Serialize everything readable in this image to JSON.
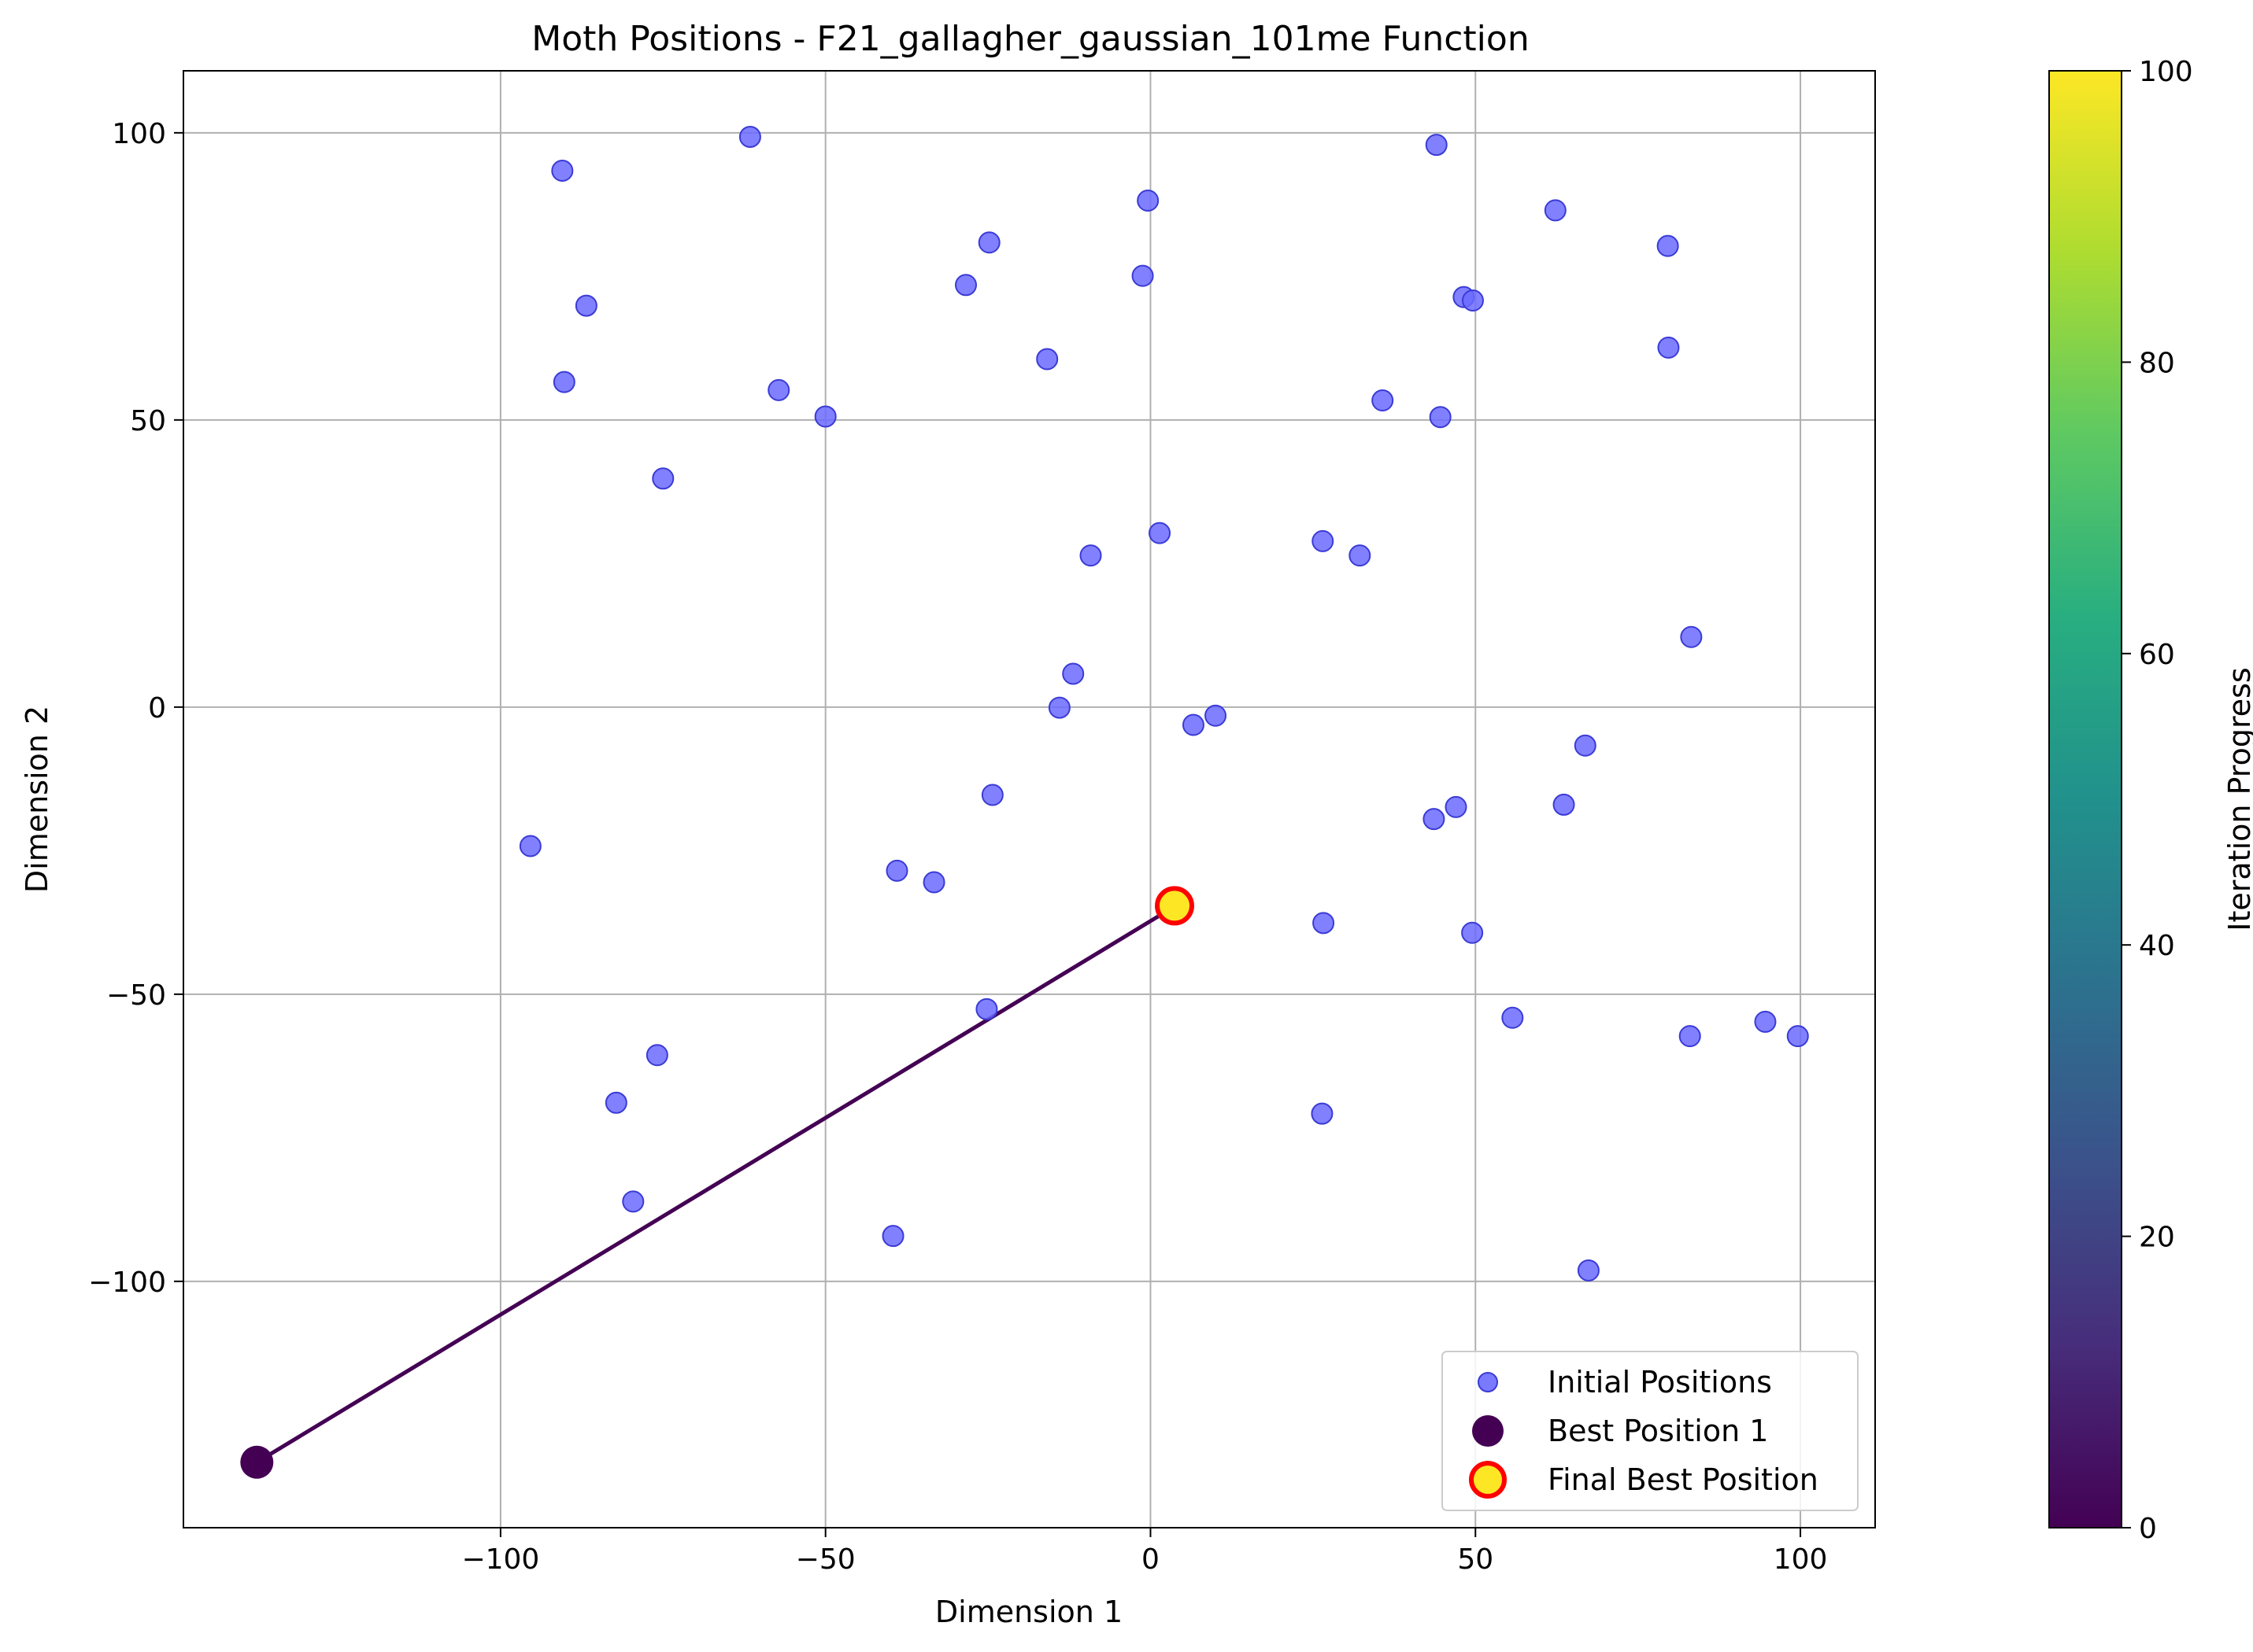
{
  "chart_data": {
    "type": "scatter",
    "title": "Moth Positions - F21_gallagher_gaussian_101me Function",
    "xlabel": "Dimension 1",
    "ylabel": "Dimension 2",
    "xlim": [
      -148.8,
      111.5
    ],
    "ylim": [
      -142.9,
      110.8
    ],
    "xticks": [
      -100,
      -50,
      0,
      50,
      100
    ],
    "yticks": [
      -100,
      -50,
      0,
      50,
      100
    ],
    "grid": true,
    "legend_position": "lower-right",
    "colors": {
      "initial": "#6b6bff",
      "initial_edge": "#3b3bd6",
      "best_start": "#440154",
      "final_fill": "#fde725",
      "final_edge": "#ff0000",
      "arrow": "#440154"
    },
    "series": [
      {
        "name": "Initial Positions",
        "points": [
          [
            -90.5,
            93.4
          ],
          [
            -61.6,
            99.3
          ],
          [
            -86.8,
            69.9
          ],
          [
            -90.2,
            56.6
          ],
          [
            -57.2,
            55.2
          ],
          [
            -50.0,
            50.6
          ],
          [
            -75.0,
            39.8
          ],
          [
            -28.4,
            73.5
          ],
          [
            -24.8,
            80.9
          ],
          [
            -15.9,
            60.6
          ],
          [
            -0.4,
            88.2
          ],
          [
            -1.2,
            75.1
          ],
          [
            1.4,
            30.3
          ],
          [
            -9.2,
            26.4
          ],
          [
            -11.9,
            5.8
          ],
          [
            -14.0,
            -0.1
          ],
          [
            6.6,
            -3.1
          ],
          [
            10.0,
            -1.5
          ],
          [
            -24.3,
            -15.3
          ],
          [
            -95.4,
            -24.2
          ],
          [
            -39.0,
            -28.5
          ],
          [
            -33.3,
            -30.5
          ],
          [
            -25.2,
            -52.6
          ],
          [
            -75.9,
            -60.6
          ],
          [
            -82.2,
            -68.9
          ],
          [
            -79.6,
            -86.1
          ],
          [
            -39.6,
            -92.1
          ],
          [
            44.0,
            97.9
          ],
          [
            62.3,
            86.5
          ],
          [
            79.6,
            80.3
          ],
          [
            48.2,
            71.4
          ],
          [
            49.6,
            70.8
          ],
          [
            79.7,
            62.6
          ],
          [
            35.7,
            53.4
          ],
          [
            44.6,
            50.5
          ],
          [
            26.5,
            28.9
          ],
          [
            32.2,
            26.4
          ],
          [
            83.2,
            12.2
          ],
          [
            66.9,
            -6.7
          ],
          [
            63.6,
            -17.0
          ],
          [
            47.0,
            -17.4
          ],
          [
            43.6,
            -19.5
          ],
          [
            26.6,
            -37.6
          ],
          [
            49.5,
            -39.3
          ],
          [
            55.7,
            -54.1
          ],
          [
            83.0,
            -57.3
          ],
          [
            94.6,
            -54.8
          ],
          [
            99.6,
            -57.3
          ],
          [
            26.4,
            -70.8
          ],
          [
            67.4,
            -98.1
          ]
        ]
      },
      {
        "name": "Best Position 1",
        "points": [
          [
            -137.5,
            -131.5
          ]
        ]
      },
      {
        "name": "Final Best Position",
        "points": [
          [
            3.7,
            -34.6
          ]
        ]
      }
    ],
    "arrow": {
      "from": [
        -137.5,
        -131.5
      ],
      "to": [
        3.7,
        -34.6
      ]
    },
    "colorbar": {
      "label": "Iteration Progress",
      "min": 0,
      "max": 100,
      "ticks": [
        0,
        20,
        40,
        60,
        80,
        100
      ],
      "colormap": "viridis"
    }
  }
}
